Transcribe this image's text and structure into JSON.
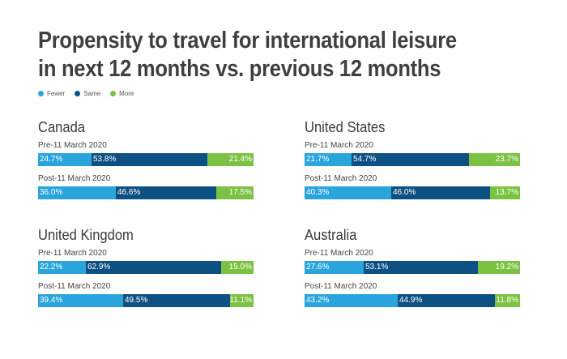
{
  "title_line1": "Propensity to travel for international leisure",
  "title_line2": "in next 12 months vs. previous 12 months",
  "legend": [
    {
      "label": "Fewer",
      "color": "#2aa5dc"
    },
    {
      "label": "Same",
      "color": "#0d5083"
    },
    {
      "label": "More",
      "color": "#7cc242"
    }
  ],
  "chart_data": {
    "type": "bar",
    "stacked": true,
    "orientation": "horizontal",
    "title": "Propensity to travel for international leisure in next 12 months vs. previous 12 months",
    "series_names": [
      "Fewer",
      "Same",
      "More"
    ],
    "panels": [
      {
        "name": "Canada",
        "bars": [
          {
            "label": "Pre-11 March 2020",
            "values": [
              24.7,
              53.8,
              21.4
            ],
            "labels": [
              "24.7%",
              "53.8%",
              "21.4%"
            ]
          },
          {
            "label": "Post-11 March 2020",
            "values": [
              36.0,
              46.6,
              17.5
            ],
            "labels": [
              "36.0%",
              "46.6%",
              "17.5%"
            ]
          }
        ]
      },
      {
        "name": "United States",
        "bars": [
          {
            "label": "Pre-11 March 2020",
            "values": [
              21.7,
              54.7,
              23.7
            ],
            "labels": [
              "21.7%",
              "54.7%",
              "23.7%"
            ]
          },
          {
            "label": "Post-11 March 2020",
            "values": [
              40.3,
              46.0,
              13.7
            ],
            "labels": [
              "40.3%",
              "46.0%",
              "13.7%"
            ]
          }
        ]
      },
      {
        "name": "United Kingdom",
        "bars": [
          {
            "label": "Pre-11 March 2020",
            "values": [
              22.2,
              62.9,
              15.0
            ],
            "labels": [
              "22.2%",
              "62.9%",
              "15.0%"
            ]
          },
          {
            "label": "Post-11 March 2020",
            "values": [
              39.4,
              49.5,
              11.1
            ],
            "labels": [
              "39.4%",
              "49.5%",
              "11.1%"
            ]
          }
        ]
      },
      {
        "name": "Australia",
        "bars": [
          {
            "label": "Pre-11 March 2020",
            "values": [
              27.6,
              53.1,
              19.2
            ],
            "labels": [
              "27.6%",
              "53.1%",
              "19.2%"
            ]
          },
          {
            "label": "Post-11 March 2020",
            "values": [
              43.2,
              44.9,
              11.8
            ],
            "labels": [
              "43.2%",
              "44.9%",
              "11.8%"
            ]
          }
        ]
      }
    ]
  }
}
